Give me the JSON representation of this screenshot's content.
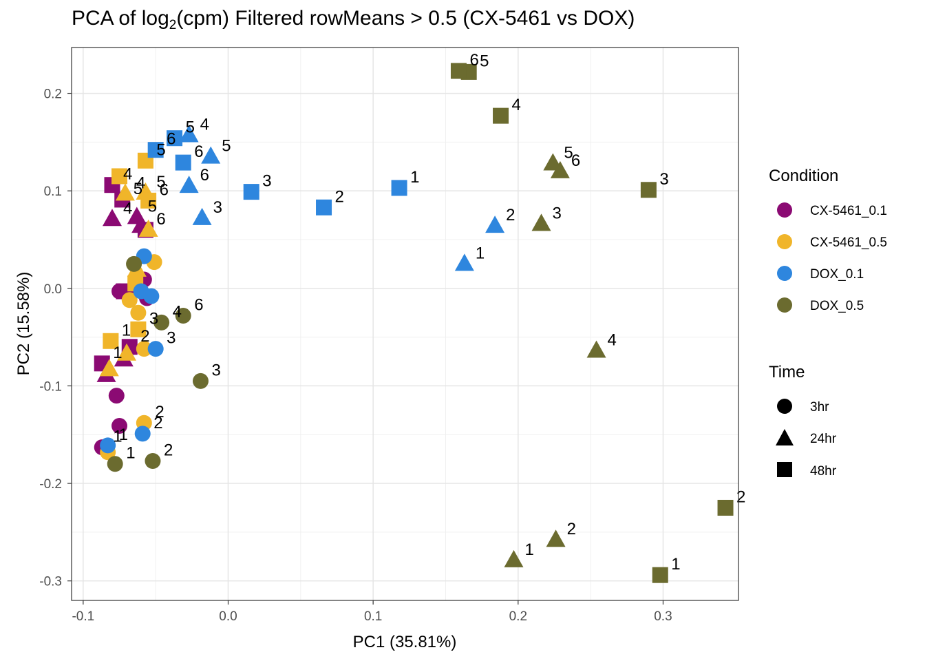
{
  "title": {
    "prefix": "PCA of log",
    "subscript": "2",
    "suffix": "(cpm) Filtered rowMeans > 0.5 (CX-5461 vs DOX)"
  },
  "chart_data": {
    "type": "scatter",
    "title": "PCA of log2(cpm) Filtered rowMeans > 0.5 (CX-5461 vs DOX)",
    "xlabel": "PC1 (35.81%)",
    "ylabel": "PC2 (15.58%)",
    "xlim": [
      -0.108,
      0.352
    ],
    "ylim": [
      -0.32,
      0.247
    ],
    "xticks": [
      -0.1,
      0.0,
      0.1,
      0.2,
      0.3
    ],
    "xtick_labels": [
      "-0.1",
      "0.0",
      "0.1",
      "0.2",
      "0.3"
    ],
    "yticks": [
      -0.3,
      -0.2,
      -0.1,
      0.0,
      0.1,
      0.2
    ],
    "ytick_labels": [
      "-0.3",
      "-0.2",
      "-0.1",
      "0.0",
      "0.1",
      "0.2"
    ],
    "grid": true,
    "legend_position": "right",
    "condition_legend": {
      "title": "Condition",
      "items": [
        {
          "name": "CX-5461_0.1",
          "color": "#8B0A73"
        },
        {
          "name": "CX-5461_0.5",
          "color": "#F0B52A"
        },
        {
          "name": "DOX_0.1",
          "color": "#2E86DE"
        },
        {
          "name": "DOX_0.5",
          "color": "#6B6B2F"
        }
      ]
    },
    "time_legend": {
      "title": "Time",
      "items": [
        {
          "name": "3hr",
          "shape": "circle"
        },
        {
          "name": "24hr",
          "shape": "triangle"
        },
        {
          "name": "48hr",
          "shape": "square"
        }
      ]
    },
    "series": [
      {
        "condition": "CX-5461_0.1",
        "time": "3hr",
        "points": [
          {
            "x": -0.087,
            "y": -0.163,
            "label": "1"
          },
          {
            "x": -0.075,
            "y": -0.141,
            "label": ""
          },
          {
            "x": -0.077,
            "y": -0.11,
            "label": ""
          },
          {
            "x": -0.058,
            "y": 0.009,
            "label": ""
          },
          {
            "x": -0.075,
            "y": -0.003,
            "label": ""
          },
          {
            "x": -0.056,
            "y": -0.01,
            "label": ""
          }
        ]
      },
      {
        "condition": "CX-5461_0.1",
        "time": "24hr",
        "points": [
          {
            "x": -0.084,
            "y": -0.089,
            "label": ""
          },
          {
            "x": -0.072,
            "y": -0.073,
            "label": ""
          },
          {
            "x": -0.065,
            "y": 0.002,
            "label": ""
          },
          {
            "x": -0.08,
            "y": 0.071,
            "label": "4"
          },
          {
            "x": -0.063,
            "y": 0.073,
            "label": "5"
          },
          {
            "x": -0.06,
            "y": 0.064,
            "label": ""
          }
        ]
      },
      {
        "condition": "CX-5461_0.1",
        "time": "48hr",
        "points": [
          {
            "x": -0.087,
            "y": -0.077,
            "label": "1"
          },
          {
            "x": -0.068,
            "y": -0.06,
            "label": "2"
          },
          {
            "x": -0.072,
            "y": -0.003,
            "label": ""
          },
          {
            "x": -0.08,
            "y": 0.106,
            "label": "4"
          },
          {
            "x": -0.073,
            "y": 0.091,
            "label": "5"
          },
          {
            "x": -0.057,
            "y": 0.06,
            "label": "6"
          }
        ]
      },
      {
        "condition": "CX-5461_0.5",
        "time": "3hr",
        "points": [
          {
            "x": -0.083,
            "y": -0.168,
            "label": ""
          },
          {
            "x": -0.058,
            "y": -0.138,
            "label": "2"
          },
          {
            "x": -0.058,
            "y": -0.062,
            "label": ""
          },
          {
            "x": -0.062,
            "y": -0.025,
            "label": ""
          },
          {
            "x": -0.068,
            "y": -0.012,
            "label": ""
          },
          {
            "x": -0.051,
            "y": 0.027,
            "label": ""
          }
        ]
      },
      {
        "condition": "CX-5461_0.5",
        "time": "24hr",
        "points": [
          {
            "x": -0.082,
            "y": -0.083,
            "label": ""
          },
          {
            "x": -0.07,
            "y": -0.067,
            "label": ""
          },
          {
            "x": -0.063,
            "y": 0.019,
            "label": ""
          },
          {
            "x": -0.071,
            "y": 0.097,
            "label": "4"
          },
          {
            "x": -0.057,
            "y": 0.098,
            "label": "5"
          },
          {
            "x": -0.055,
            "y": 0.06,
            "label": ""
          }
        ]
      },
      {
        "condition": "CX-5461_0.5",
        "time": "48hr",
        "points": [
          {
            "x": -0.081,
            "y": -0.054,
            "label": "1"
          },
          {
            "x": -0.062,
            "y": -0.042,
            "label": "3"
          },
          {
            "x": -0.055,
            "y": 0.09,
            "label": "6"
          },
          {
            "x": -0.075,
            "y": 0.115,
            "label": ""
          },
          {
            "x": -0.057,
            "y": 0.131,
            "label": "5"
          },
          {
            "x": -0.064,
            "y": 0.005,
            "label": ""
          }
        ]
      },
      {
        "condition": "DOX_0.1",
        "time": "3hr",
        "points": [
          {
            "x": -0.083,
            "y": -0.161,
            "label": "1"
          },
          {
            "x": -0.059,
            "y": -0.149,
            "label": "2"
          },
          {
            "x": -0.05,
            "y": -0.062,
            "label": "3"
          },
          {
            "x": -0.053,
            "y": -0.008,
            "label": ""
          },
          {
            "x": -0.06,
            "y": -0.003,
            "label": ""
          },
          {
            "x": -0.058,
            "y": 0.033,
            "label": ""
          }
        ]
      },
      {
        "condition": "DOX_0.1",
        "time": "24hr",
        "points": [
          {
            "x": 0.163,
            "y": 0.025,
            "label": "1"
          },
          {
            "x": 0.184,
            "y": 0.064,
            "label": "2"
          },
          {
            "x": -0.018,
            "y": 0.072,
            "label": "3"
          },
          {
            "x": -0.027,
            "y": 0.157,
            "label": "4"
          },
          {
            "x": -0.012,
            "y": 0.135,
            "label": "5"
          },
          {
            "x": -0.027,
            "y": 0.105,
            "label": "6"
          }
        ]
      },
      {
        "condition": "DOX_0.1",
        "time": "48hr",
        "points": [
          {
            "x": 0.118,
            "y": 0.103,
            "label": "1"
          },
          {
            "x": 0.066,
            "y": 0.083,
            "label": "2"
          },
          {
            "x": 0.016,
            "y": 0.099,
            "label": "3"
          },
          {
            "x": -0.037,
            "y": 0.154,
            "label": "5"
          },
          {
            "x": -0.031,
            "y": 0.129,
            "label": "6"
          },
          {
            "x": -0.05,
            "y": 0.142,
            "label": "6"
          }
        ]
      },
      {
        "condition": "DOX_0.5",
        "time": "3hr",
        "points": [
          {
            "x": -0.078,
            "y": -0.18,
            "label": "1"
          },
          {
            "x": -0.052,
            "y": -0.177,
            "label": "2"
          },
          {
            "x": -0.019,
            "y": -0.095,
            "label": "3"
          },
          {
            "x": -0.046,
            "y": -0.035,
            "label": "4"
          },
          {
            "x": -0.065,
            "y": 0.025,
            "label": ""
          },
          {
            "x": -0.031,
            "y": -0.028,
            "label": "6"
          }
        ]
      },
      {
        "condition": "DOX_0.5",
        "time": "24hr",
        "points": [
          {
            "x": 0.197,
            "y": -0.279,
            "label": "1"
          },
          {
            "x": 0.226,
            "y": -0.258,
            "label": "2"
          },
          {
            "x": 0.216,
            "y": 0.066,
            "label": "3"
          },
          {
            "x": 0.254,
            "y": -0.064,
            "label": "4"
          },
          {
            "x": 0.224,
            "y": 0.128,
            "label": "5"
          },
          {
            "x": 0.229,
            "y": 0.12,
            "label": "6"
          }
        ]
      },
      {
        "condition": "DOX_0.5",
        "time": "48hr",
        "points": [
          {
            "x": 0.298,
            "y": -0.294,
            "label": "1"
          },
          {
            "x": 0.343,
            "y": -0.225,
            "label": "2"
          },
          {
            "x": 0.29,
            "y": 0.101,
            "label": "3"
          },
          {
            "x": 0.188,
            "y": 0.177,
            "label": "4"
          },
          {
            "x": 0.166,
            "y": 0.222,
            "label": "5"
          },
          {
            "x": 0.159,
            "y": 0.223,
            "label": "6"
          }
        ]
      }
    ]
  }
}
